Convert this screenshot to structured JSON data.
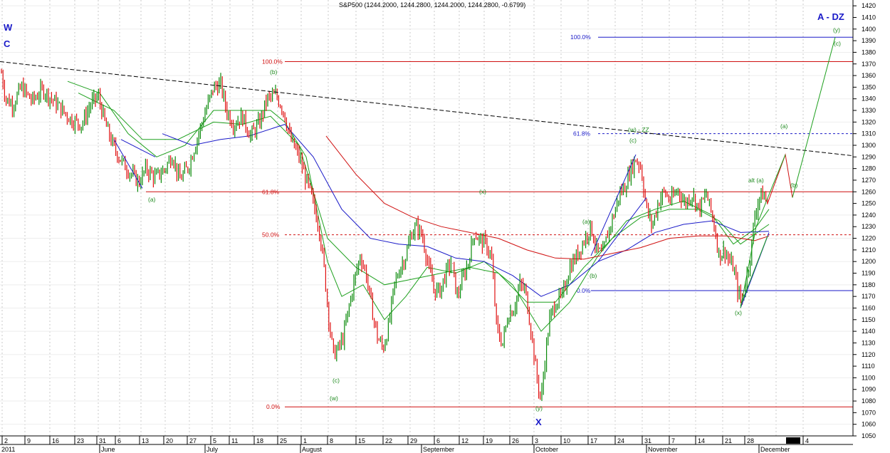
{
  "chart_data": {
    "type": "candlestick",
    "title": "S&P500 (1244.2000, 1244.2800, 1244.2000, 1244.2800, -0.6799)",
    "ylim": [
      1050,
      1425
    ],
    "y_ticks": [
      1050,
      1060,
      1070,
      1080,
      1090,
      1100,
      1110,
      1120,
      1130,
      1140,
      1150,
      1160,
      1170,
      1180,
      1190,
      1200,
      1210,
      1220,
      1230,
      1240,
      1250,
      1260,
      1270,
      1280,
      1290,
      1300,
      1310,
      1320,
      1330,
      1340,
      1350,
      1360,
      1370,
      1380,
      1390,
      1400,
      1410,
      1420
    ],
    "x_day_labels": [
      "2",
      "9",
      "16",
      "23",
      "31",
      "6",
      "13",
      "20",
      "27",
      "5",
      "11",
      "18",
      "25",
      "1",
      "8",
      "15",
      "22",
      "29",
      "6",
      "12",
      "19",
      "26",
      "3",
      "10",
      "17",
      "24",
      "31",
      "7",
      "14",
      "21",
      "28",
      "4"
    ],
    "x_month_labels": [
      "2011",
      "June",
      "July",
      "August",
      "September",
      "October",
      "November",
      "December"
    ],
    "price_waypoints": [
      [
        0,
        1370
      ],
      [
        8,
        1340
      ],
      [
        18,
        1335
      ],
      [
        30,
        1350
      ],
      [
        45,
        1338
      ],
      [
        60,
        1348
      ],
      [
        80,
        1335
      ],
      [
        100,
        1322
      ],
      [
        115,
        1318
      ],
      [
        128,
        1336
      ],
      [
        138,
        1342
      ],
      [
        148,
        1318
      ],
      [
        160,
        1298
      ],
      [
        172,
        1285
      ],
      [
        185,
        1275
      ],
      [
        195,
        1268
      ],
      [
        205,
        1280
      ],
      [
        218,
        1272
      ],
      [
        232,
        1280
      ],
      [
        242,
        1292
      ],
      [
        252,
        1270
      ],
      [
        265,
        1282
      ],
      [
        278,
        1308
      ],
      [
        290,
        1332
      ],
      [
        300,
        1350
      ],
      [
        310,
        1352
      ],
      [
        318,
        1330
      ],
      [
        328,
        1318
      ],
      [
        340,
        1325
      ],
      [
        352,
        1308
      ],
      [
        365,
        1320
      ],
      [
        375,
        1340
      ],
      [
        388,
        1343
      ],
      [
        398,
        1330
      ],
      [
        408,
        1305
      ],
      [
        420,
        1290
      ],
      [
        430,
        1270
      ],
      [
        440,
        1250
      ],
      [
        448,
        1230
      ],
      [
        455,
        1195
      ],
      [
        462,
        1150
      ],
      [
        468,
        1120
      ],
      [
        475,
        1125
      ],
      [
        482,
        1135
      ],
      [
        490,
        1160
      ],
      [
        498,
        1185
      ],
      [
        506,
        1205
      ],
      [
        514,
        1190
      ],
      [
        522,
        1160
      ],
      [
        530,
        1135
      ],
      [
        538,
        1125
      ],
      [
        546,
        1145
      ],
      [
        554,
        1180
      ],
      [
        562,
        1195
      ],
      [
        570,
        1205
      ],
      [
        578,
        1225
      ],
      [
        586,
        1230
      ],
      [
        594,
        1220
      ],
      [
        602,
        1195
      ],
      [
        610,
        1175
      ],
      [
        618,
        1175
      ],
      [
        626,
        1190
      ],
      [
        634,
        1200
      ],
      [
        642,
        1170
      ],
      [
        650,
        1185
      ],
      [
        658,
        1200
      ],
      [
        666,
        1225
      ],
      [
        674,
        1218
      ],
      [
        682,
        1215
      ],
      [
        690,
        1205
      ],
      [
        698,
        1140
      ],
      [
        706,
        1130
      ],
      [
        714,
        1155
      ],
      [
        722,
        1160
      ],
      [
        730,
        1180
      ],
      [
        738,
        1175
      ],
      [
        746,
        1140
      ],
      [
        754,
        1100
      ],
      [
        760,
        1080
      ],
      [
        766,
        1120
      ],
      [
        772,
        1150
      ],
      [
        780,
        1165
      ],
      [
        790,
        1170
      ],
      [
        800,
        1195
      ],
      [
        810,
        1205
      ],
      [
        820,
        1218
      ],
      [
        830,
        1230
      ],
      [
        838,
        1210
      ],
      [
        846,
        1205
      ],
      [
        854,
        1225
      ],
      [
        862,
        1240
      ],
      [
        870,
        1258
      ],
      [
        878,
        1265
      ],
      [
        886,
        1280
      ],
      [
        893,
        1288
      ],
      [
        900,
        1282
      ],
      [
        908,
        1245
      ],
      [
        916,
        1230
      ],
      [
        924,
        1250
      ],
      [
        932,
        1260
      ],
      [
        942,
        1252
      ],
      [
        952,
        1262
      ],
      [
        962,
        1250
      ],
      [
        972,
        1258
      ],
      [
        982,
        1245
      ],
      [
        992,
        1258
      ],
      [
        1002,
        1235
      ],
      [
        1010,
        1205
      ],
      [
        1018,
        1210
      ],
      [
        1024,
        1200
      ],
      [
        1030,
        1195
      ],
      [
        1036,
        1175
      ],
      [
        1042,
        1165
      ],
      [
        1048,
        1185
      ],
      [
        1054,
        1205
      ],
      [
        1060,
        1240
      ],
      [
        1066,
        1255
      ],
      [
        1072,
        1258
      ],
      [
        1078,
        1250
      ]
    ],
    "moving_averages": [
      {
        "color": "#1ea01e",
        "points": [
          [
            95,
            1355
          ],
          [
            140,
            1345
          ],
          [
            180,
            1310
          ],
          [
            220,
            1290
          ],
          [
            260,
            1300
          ],
          [
            300,
            1330
          ],
          [
            340,
            1330
          ],
          [
            380,
            1330
          ],
          [
            400,
            1320
          ],
          [
            430,
            1290
          ],
          [
            460,
            1200
          ],
          [
            480,
            1170
          ],
          [
            510,
            1180
          ],
          [
            540,
            1150
          ],
          [
            570,
            1170
          ],
          [
            600,
            1195
          ],
          [
            640,
            1190
          ],
          [
            680,
            1200
          ],
          [
            720,
            1180
          ],
          [
            760,
            1140
          ],
          [
            800,
            1165
          ],
          [
            840,
            1205
          ],
          [
            880,
            1235
          ],
          [
            920,
            1245
          ],
          [
            960,
            1252
          ],
          [
            1000,
            1240
          ],
          [
            1030,
            1215
          ],
          [
            1060,
            1228
          ],
          [
            1080,
            1245
          ]
        ]
      },
      {
        "color": "#1ea01e",
        "points": [
          [
            110,
            1345
          ],
          [
            160,
            1330
          ],
          [
            200,
            1305
          ],
          [
            250,
            1305
          ],
          [
            300,
            1320
          ],
          [
            340,
            1318
          ],
          [
            380,
            1325
          ],
          [
            420,
            1300
          ],
          [
            460,
            1220
          ],
          [
            500,
            1195
          ],
          [
            540,
            1180
          ],
          [
            580,
            1185
          ],
          [
            620,
            1190
          ],
          [
            660,
            1195
          ],
          [
            700,
            1190
          ],
          [
            740,
            1165
          ],
          [
            780,
            1165
          ],
          [
            820,
            1195
          ],
          [
            860,
            1220
          ],
          [
            900,
            1238
          ],
          [
            940,
            1245
          ],
          [
            980,
            1245
          ],
          [
            1010,
            1235
          ],
          [
            1040,
            1215
          ],
          [
            1080,
            1232
          ]
        ]
      },
      {
        "color": "#1a1ac8",
        "points": [
          [
            228,
            1310
          ],
          [
            270,
            1300
          ],
          [
            310,
            1305
          ],
          [
            350,
            1308
          ],
          [
            400,
            1318
          ],
          [
            440,
            1290
          ],
          [
            480,
            1245
          ],
          [
            520,
            1220
          ],
          [
            560,
            1215
          ],
          [
            600,
            1213
          ],
          [
            640,
            1203
          ],
          [
            680,
            1200
          ],
          [
            720,
            1188
          ],
          [
            760,
            1170
          ],
          [
            800,
            1180
          ],
          [
            840,
            1200
          ],
          [
            880,
            1210
          ],
          [
            920,
            1225
          ],
          [
            960,
            1232
          ],
          [
            1000,
            1235
          ],
          [
            1040,
            1225
          ],
          [
            1080,
            1226
          ]
        ]
      },
      {
        "color": "#d01010",
        "points": [
          [
            458,
            1308
          ],
          [
            500,
            1275
          ],
          [
            540,
            1250
          ],
          [
            580,
            1238
          ],
          [
            620,
            1230
          ],
          [
            660,
            1225
          ],
          [
            700,
            1220
          ],
          [
            740,
            1210
          ],
          [
            780,
            1203
          ],
          [
            820,
            1202
          ],
          [
            860,
            1207
          ],
          [
            900,
            1212
          ],
          [
            940,
            1220
          ],
          [
            980,
            1222
          ],
          [
            1020,
            1222
          ],
          [
            1060,
            1218
          ],
          [
            1080,
            1222
          ]
        ]
      }
    ],
    "fib_levels": [
      {
        "label": "100.0%",
        "value": 1372,
        "color": "#d01010"
      },
      {
        "label": "61.8%",
        "value": 1260,
        "color": "#d01010"
      },
      {
        "label": "50.0%",
        "value": 1223,
        "color": "#d01010",
        "dashed": true
      },
      {
        "label": "0.0%",
        "value": 1075,
        "color": "#d01010"
      },
      {
        "label": "100.0%",
        "value": 1393,
        "color": "#1a1ac8"
      },
      {
        "label": "61.8%",
        "value": 1310,
        "color": "#1a1ac8",
        "dashed": true
      },
      {
        "label": "0.0%",
        "value": 1175,
        "color": "#1a1ac8"
      }
    ],
    "wave_labels": [
      {
        "text": "(a)",
        "color": "green"
      },
      {
        "text": "(b)",
        "color": "green"
      },
      {
        "text": "(c)",
        "color": "green"
      },
      {
        "text": "(w)",
        "color": "green"
      },
      {
        "text": "(x)",
        "color": "green"
      },
      {
        "text": "(y)",
        "color": "green"
      },
      {
        "text": "(a)",
        "color": "green"
      },
      {
        "text": "(b)",
        "color": "green"
      },
      {
        "text": "(c)",
        "color": "green"
      },
      {
        "text": "(w) - ZZ",
        "color": "green"
      },
      {
        "text": "alt (a)",
        "color": "green"
      },
      {
        "text": "(x)",
        "color": "green"
      },
      {
        "text": "(a)",
        "color": "green"
      },
      {
        "text": "(b)",
        "color": "green"
      },
      {
        "text": "(c)",
        "color": "green"
      },
      {
        "text": "(y)",
        "color": "green"
      },
      {
        "text": "W",
        "color": "blue"
      },
      {
        "text": "C",
        "color": "blue"
      },
      {
        "text": "X",
        "color": "blue"
      },
      {
        "text": "A - DZ",
        "color": "blue"
      }
    ],
    "colors": {
      "up": "#0a8a0a",
      "down": "#e01010",
      "grid": "#c8c8c8",
      "trend": "#000000"
    }
  }
}
